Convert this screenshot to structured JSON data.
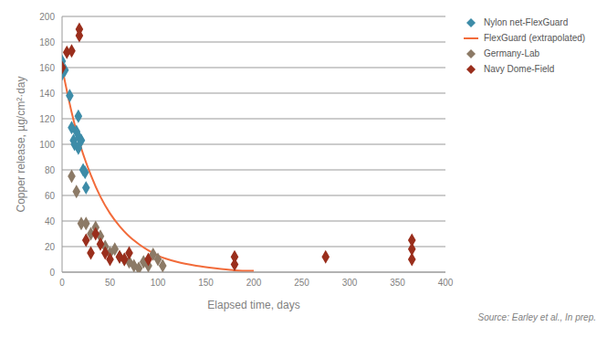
{
  "chart_data": {
    "type": "scatter",
    "x_label": "Elapsed time, days",
    "y_label": "Copper release, µg/cm²·day",
    "source": "Source: Earley et al., In prep.",
    "xlim": [
      0,
      400
    ],
    "xticks": [
      0,
      50,
      100,
      150,
      200,
      250,
      300,
      350,
      400
    ],
    "ylim": [
      0,
      200
    ],
    "yticks": [
      0,
      20,
      40,
      60,
      80,
      100,
      120,
      140,
      160,
      180,
      200
    ],
    "grid": true,
    "legend": "right",
    "series": [
      {
        "name": "Nylon net-FlexGuard",
        "type": "scatter",
        "marker": "diamond",
        "color": "#3d8ca8",
        "x": [
          0,
          0,
          3,
          8,
          10,
          12,
          13,
          15,
          17,
          17,
          18,
          20,
          22,
          24,
          25
        ],
        "values": [
          165,
          155,
          158,
          138,
          113,
          103,
          100,
          110,
          122,
          97,
          105,
          103,
          80,
          78,
          66
        ]
      },
      {
        "name": "FlexGuard (extrapolated)",
        "type": "line",
        "line_style": "solid",
        "color": "#f26b3a",
        "x": [
          0,
          10,
          20,
          30,
          40,
          50,
          60,
          70,
          80,
          90,
          100,
          120,
          140,
          160,
          180,
          200
        ],
        "values": [
          160,
          125,
          97,
          76,
          59,
          46,
          36,
          28,
          22,
          17,
          13,
          8,
          5,
          3,
          1.5,
          1
        ]
      },
      {
        "name": "Germany-Lab",
        "type": "scatter",
        "marker": "diamond",
        "color": "#8c7a66",
        "x": [
          10,
          15,
          20,
          25,
          30,
          35,
          40,
          45,
          50,
          55,
          60,
          65,
          70,
          75,
          80,
          85,
          90,
          95,
          100,
          105
        ],
        "values": [
          75,
          63,
          38,
          38,
          30,
          35,
          28,
          20,
          15,
          18,
          12,
          10,
          8,
          5,
          3,
          8,
          5,
          14,
          10,
          5
        ]
      },
      {
        "name": "Navy Dome-Field",
        "type": "scatter",
        "marker": "diamond",
        "color": "#9a2e1c",
        "x": [
          0,
          5,
          10,
          18,
          18,
          25,
          30,
          35,
          40,
          45,
          50,
          60,
          65,
          70,
          90,
          180,
          180,
          275,
          365,
          365,
          365
        ],
        "values": [
          160,
          172,
          173,
          190,
          185,
          25,
          15,
          30,
          22,
          15,
          10,
          12,
          10,
          15,
          10,
          12,
          6,
          12,
          25,
          18,
          10
        ]
      }
    ]
  }
}
